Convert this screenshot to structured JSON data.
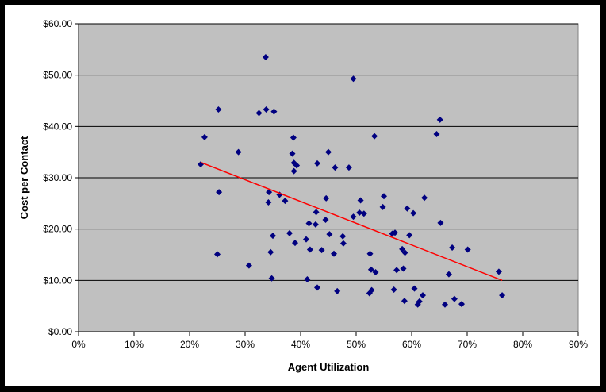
{
  "chart_data": {
    "type": "scatter",
    "title": "",
    "xlabel": "Agent Utilization",
    "ylabel": "Cost per Contact",
    "xlim": [
      0,
      0.9
    ],
    "ylim": [
      0,
      60
    ],
    "x_ticks": [
      0,
      0.1,
      0.2,
      0.3,
      0.4,
      0.5,
      0.6,
      0.7,
      0.8,
      0.9
    ],
    "x_tick_labels": [
      "0%",
      "10%",
      "20%",
      "30%",
      "40%",
      "50%",
      "60%",
      "70%",
      "80%",
      "90%"
    ],
    "y_ticks": [
      0,
      10,
      20,
      30,
      40,
      50,
      60
    ],
    "y_tick_labels": [
      "$0.00",
      "$10.00",
      "$20.00",
      "$30.00",
      "$40.00",
      "$50.00",
      "$60.00"
    ],
    "grid": "horizontal",
    "legend": "none",
    "plot_background": "#c0c0c0",
    "marker_color": "#000080",
    "trendline_color": "#ff0000",
    "points": [
      {
        "x": 0.22,
        "y": 32.6
      },
      {
        "x": 0.227,
        "y": 37.9
      },
      {
        "x": 0.25,
        "y": 15.1
      },
      {
        "x": 0.252,
        "y": 43.3
      },
      {
        "x": 0.253,
        "y": 27.2
      },
      {
        "x": 0.288,
        "y": 35.0
      },
      {
        "x": 0.307,
        "y": 12.9
      },
      {
        "x": 0.325,
        "y": 42.6
      },
      {
        "x": 0.337,
        "y": 53.5
      },
      {
        "x": 0.338,
        "y": 43.3
      },
      {
        "x": 0.342,
        "y": 25.2
      },
      {
        "x": 0.343,
        "y": 27.2
      },
      {
        "x": 0.346,
        "y": 15.5
      },
      {
        "x": 0.348,
        "y": 10.4
      },
      {
        "x": 0.35,
        "y": 18.7
      },
      {
        "x": 0.352,
        "y": 42.9
      },
      {
        "x": 0.362,
        "y": 26.7
      },
      {
        "x": 0.372,
        "y": 25.5
      },
      {
        "x": 0.38,
        "y": 19.2
      },
      {
        "x": 0.385,
        "y": 34.7
      },
      {
        "x": 0.387,
        "y": 37.8
      },
      {
        "x": 0.388,
        "y": 31.3
      },
      {
        "x": 0.388,
        "y": 32.9
      },
      {
        "x": 0.39,
        "y": 17.3
      },
      {
        "x": 0.393,
        "y": 32.4
      },
      {
        "x": 0.41,
        "y": 18.0
      },
      {
        "x": 0.412,
        "y": 10.2
      },
      {
        "x": 0.415,
        "y": 21.1
      },
      {
        "x": 0.417,
        "y": 16.0
      },
      {
        "x": 0.427,
        "y": 20.9
      },
      {
        "x": 0.428,
        "y": 23.3
      },
      {
        "x": 0.43,
        "y": 8.6
      },
      {
        "x": 0.43,
        "y": 32.8
      },
      {
        "x": 0.438,
        "y": 15.9
      },
      {
        "x": 0.445,
        "y": 21.8
      },
      {
        "x": 0.446,
        "y": 26.0
      },
      {
        "x": 0.45,
        "y": 35.0
      },
      {
        "x": 0.452,
        "y": 19.0
      },
      {
        "x": 0.46,
        "y": 15.2
      },
      {
        "x": 0.462,
        "y": 32.0
      },
      {
        "x": 0.466,
        "y": 7.9
      },
      {
        "x": 0.476,
        "y": 18.6
      },
      {
        "x": 0.477,
        "y": 17.2
      },
      {
        "x": 0.487,
        "y": 32.0
      },
      {
        "x": 0.495,
        "y": 49.3
      },
      {
        "x": 0.495,
        "y": 22.4
      },
      {
        "x": 0.506,
        "y": 23.2
      },
      {
        "x": 0.508,
        "y": 25.6
      },
      {
        "x": 0.514,
        "y": 23.0
      },
      {
        "x": 0.524,
        "y": 7.5
      },
      {
        "x": 0.525,
        "y": 15.2
      },
      {
        "x": 0.527,
        "y": 12.1
      },
      {
        "x": 0.528,
        "y": 8.1
      },
      {
        "x": 0.533,
        "y": 38.1
      },
      {
        "x": 0.535,
        "y": 11.6
      },
      {
        "x": 0.548,
        "y": 24.3
      },
      {
        "x": 0.55,
        "y": 26.4
      },
      {
        "x": 0.565,
        "y": 19.1
      },
      {
        "x": 0.568,
        "y": 8.2
      },
      {
        "x": 0.57,
        "y": 19.3
      },
      {
        "x": 0.573,
        "y": 12.0
      },
      {
        "x": 0.583,
        "y": 16.1
      },
      {
        "x": 0.585,
        "y": 12.3
      },
      {
        "x": 0.587,
        "y": 6.0
      },
      {
        "x": 0.588,
        "y": 15.4
      },
      {
        "x": 0.592,
        "y": 24.0
      },
      {
        "x": 0.596,
        "y": 18.8
      },
      {
        "x": 0.603,
        "y": 23.1
      },
      {
        "x": 0.605,
        "y": 8.4
      },
      {
        "x": 0.611,
        "y": 5.3
      },
      {
        "x": 0.614,
        "y": 5.9
      },
      {
        "x": 0.62,
        "y": 7.1
      },
      {
        "x": 0.623,
        "y": 26.1
      },
      {
        "x": 0.645,
        "y": 38.5
      },
      {
        "x": 0.651,
        "y": 41.3
      },
      {
        "x": 0.652,
        "y": 21.2
      },
      {
        "x": 0.66,
        "y": 5.3
      },
      {
        "x": 0.667,
        "y": 11.2
      },
      {
        "x": 0.673,
        "y": 16.4
      },
      {
        "x": 0.677,
        "y": 6.4
      },
      {
        "x": 0.69,
        "y": 5.4
      },
      {
        "x": 0.701,
        "y": 16.0
      },
      {
        "x": 0.757,
        "y": 11.7
      },
      {
        "x": 0.763,
        "y": 7.1
      }
    ],
    "trendline": {
      "x": [
        0.22,
        0.763
      ],
      "y": [
        33.0,
        10.0
      ]
    }
  }
}
